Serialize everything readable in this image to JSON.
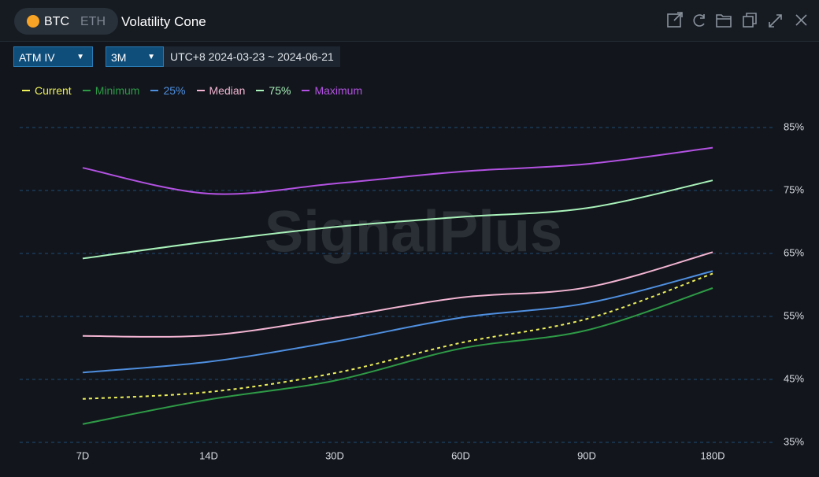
{
  "header": {
    "tabs": [
      "BTC",
      "ETH"
    ],
    "title": "Volatility Cone"
  },
  "controls": {
    "metric": "ATM IV",
    "period": "3M",
    "range": "UTC+8 2024-03-23 ~ 2024-06-21"
  },
  "watermark": "SignalPlus",
  "chart_data": {
    "type": "line",
    "categories": [
      "7D",
      "14D",
      "30D",
      "60D",
      "90D",
      "180D"
    ],
    "ylim": [
      35,
      85
    ],
    "yticks": [
      {
        "value": 35,
        "label": "35%"
      },
      {
        "value": 45,
        "label": "45%"
      },
      {
        "value": 55,
        "label": "55%"
      },
      {
        "value": 65,
        "label": "65%"
      },
      {
        "value": 75,
        "label": "75%"
      },
      {
        "value": 85,
        "label": "85%"
      }
    ],
    "grid": true,
    "series": [
      {
        "name": "Current",
        "color": "#eef05a",
        "dashed": true,
        "values": [
          41.9,
          43.0,
          46.0,
          50.8,
          54.6,
          61.8
        ]
      },
      {
        "name": "Minimum",
        "color": "#2e9a46",
        "values": [
          37.9,
          41.8,
          44.8,
          49.9,
          52.8,
          59.5
        ]
      },
      {
        "name": "25%",
        "color": "#4f8fe0",
        "values": [
          46.1,
          47.8,
          51.0,
          54.8,
          57.1,
          62.2
        ]
      },
      {
        "name": "Median",
        "color": "#f2b4d2",
        "values": [
          51.9,
          52.0,
          54.8,
          58.0,
          59.6,
          65.2
        ]
      },
      {
        "name": "75%",
        "color": "#a9f2ba",
        "values": [
          64.2,
          66.9,
          69.2,
          70.8,
          72.2,
          76.6
        ]
      },
      {
        "name": "Maximum",
        "color": "#b352e2",
        "values": [
          78.6,
          74.5,
          76.1,
          78.0,
          79.2,
          81.8
        ]
      }
    ]
  }
}
